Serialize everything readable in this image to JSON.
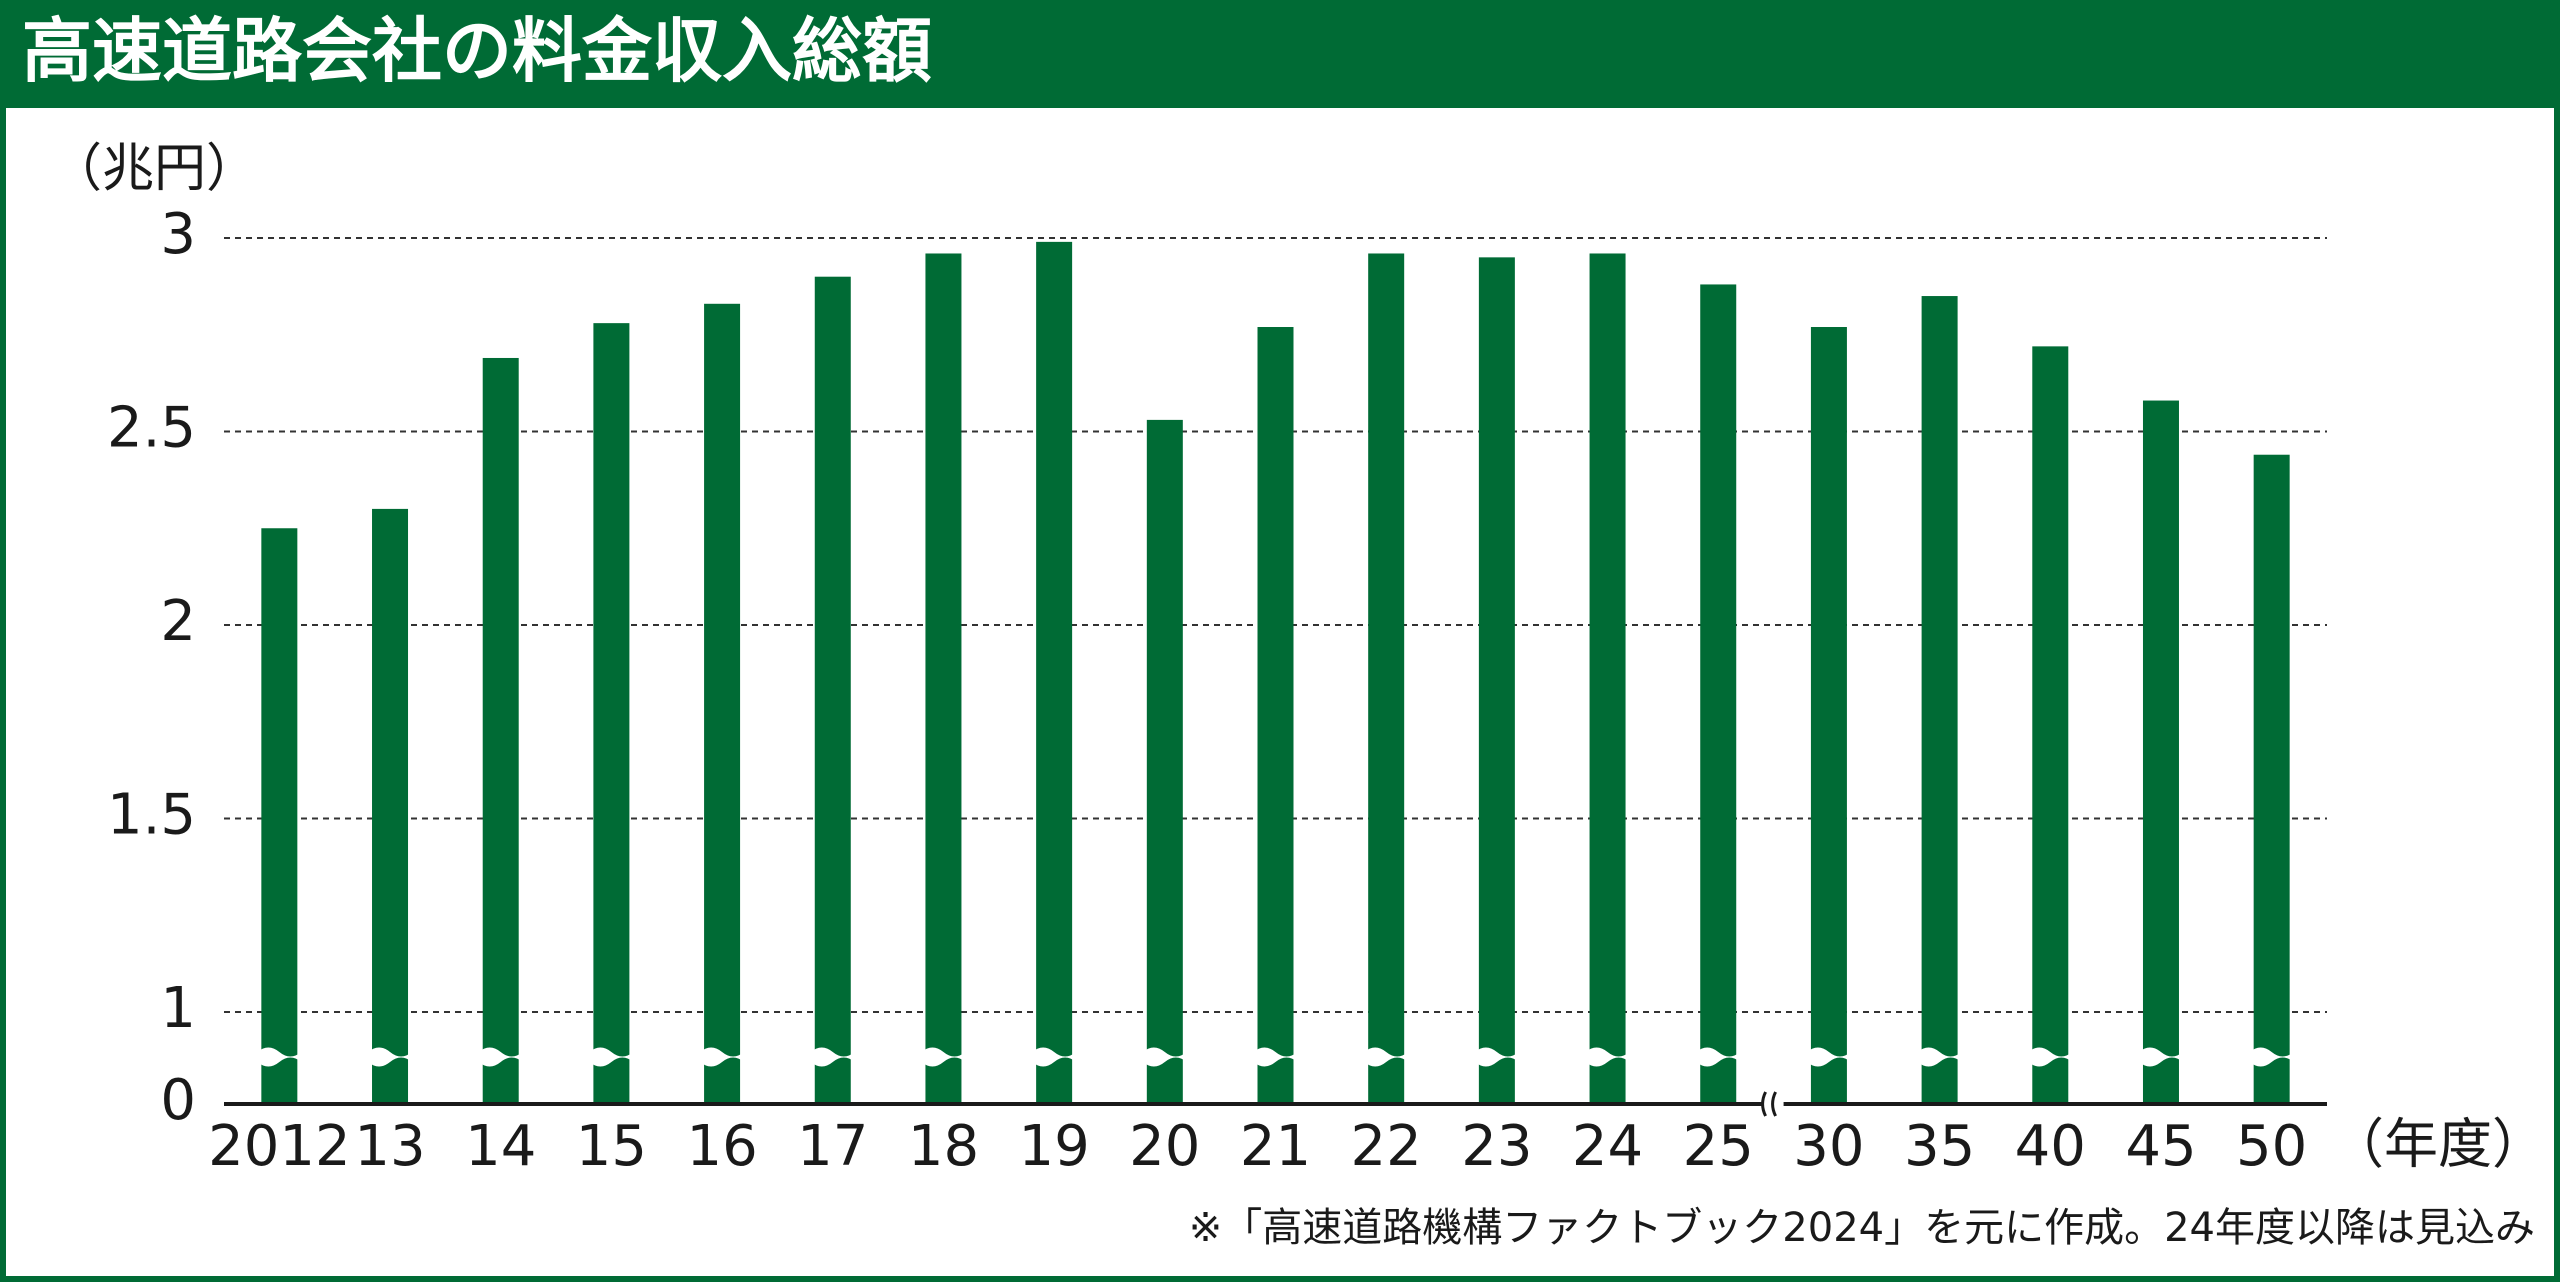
{
  "chart_data": {
    "type": "bar",
    "title": "高速道路会社の料金収入総額",
    "y_label": "（兆円）",
    "x_label": "（年度）",
    "note": "※「高速道路機構ファクトブック2024」を元に作成。24年度以降は見込み",
    "categories": [
      "2012",
      "13",
      "14",
      "15",
      "16",
      "17",
      "18",
      "19",
      "20",
      "21",
      "22",
      "23",
      "24",
      "25",
      "30",
      "35",
      "40",
      "45",
      "50"
    ],
    "values": [
      2.25,
      2.3,
      2.69,
      2.78,
      2.83,
      2.9,
      2.96,
      2.99,
      2.53,
      2.77,
      2.96,
      2.95,
      2.96,
      2.88,
      2.77,
      2.85,
      2.72,
      2.58,
      2.44
    ],
    "color": "#006b35",
    "ylim": [
      0,
      3
    ],
    "yticks": [
      0,
      1,
      1.5,
      2,
      2.5,
      3
    ],
    "axis_break": true,
    "grid": true
  }
}
